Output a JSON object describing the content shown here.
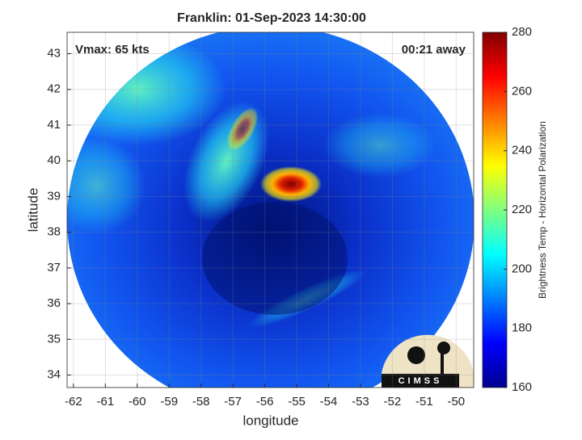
{
  "chart_data": {
    "type": "image-map",
    "title": "Franklin: 01-Sep-2023 14:30:00",
    "annotations": [
      "Vmax: 65 kts",
      "00:21 away"
    ],
    "logo": "CIMSS",
    "x_label": "longitude",
    "y_label": "latitude",
    "xlim": [
      -62.2,
      -49.45
    ],
    "xticks": [
      -62,
      -61,
      -60,
      -59,
      -58,
      -57,
      -56,
      -55,
      -54,
      -53,
      -52,
      -51,
      -50
    ],
    "ylim": [
      33.65,
      43.6
    ],
    "yticks": [
      34,
      35,
      36,
      37,
      38,
      39,
      40,
      41,
      42,
      43
    ],
    "grid": true,
    "colorbar": {
      "label": "Brightness Temp - Horizontal Polarization",
      "colormap": "jet",
      "lim": [
        160,
        280
      ],
      "ticks": [
        160,
        180,
        200,
        220,
        240,
        260,
        280
      ]
    }
  }
}
